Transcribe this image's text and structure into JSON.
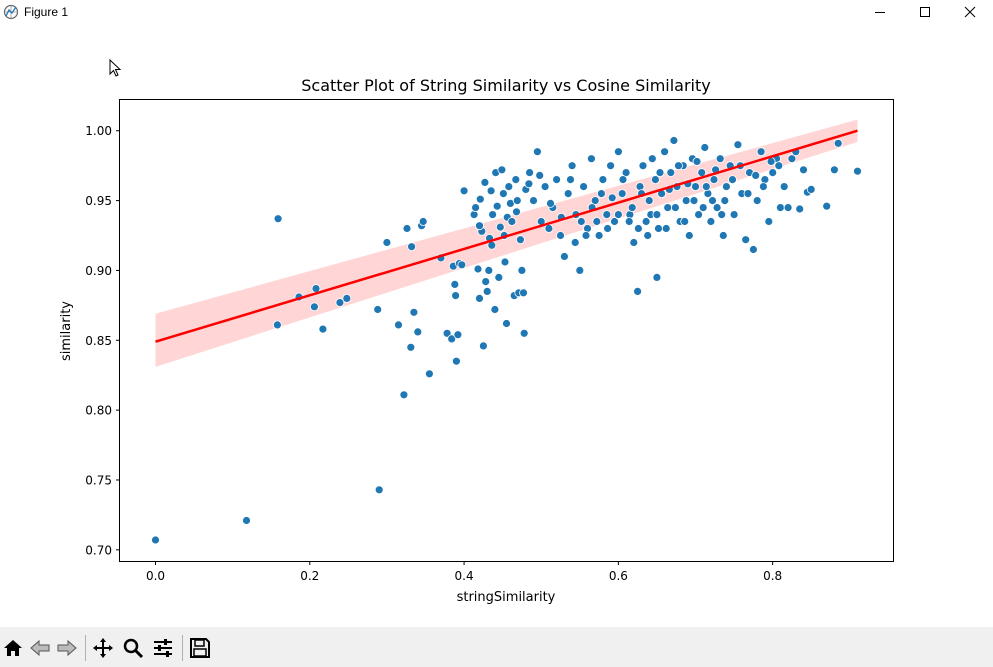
{
  "window": {
    "title": "Figure 1"
  },
  "toolbar": {
    "items": [
      "home-icon",
      "back-icon",
      "forward-icon",
      "pan-icon",
      "zoom-icon",
      "configure-subplots-icon",
      "save-icon"
    ]
  },
  "colors": {
    "point": "#1f77b4",
    "line": "#ff0000",
    "band": "#ffb3b3"
  },
  "chart_data": {
    "type": "scatter",
    "title": "Scatter Plot of String Similarity vs Cosine Similarity",
    "xlabel": "stringSimilarity",
    "ylabel": "similarity",
    "xlim": [
      -0.046,
      0.956
    ],
    "ylim": [
      0.692,
      1.022
    ],
    "xticks": [
      0.0,
      0.2,
      0.4,
      0.6,
      0.8
    ],
    "xtick_labels": [
      "0.0",
      "0.2",
      "0.4",
      "0.6",
      "0.8"
    ],
    "yticks": [
      0.7,
      0.75,
      0.8,
      0.85,
      0.9,
      0.95,
      1.0
    ],
    "ytick_labels": [
      "0.70",
      "0.75",
      "0.80",
      "0.85",
      "0.90",
      "0.95",
      "1.00"
    ],
    "regression": {
      "x": [
        0.0,
        0.91
      ],
      "y": [
        0.849,
        1.0
      ],
      "ci_at_x0": [
        0.831,
        0.869
      ],
      "ci_at_x1": [
        0.992,
        1.008
      ]
    },
    "points": [
      [
        0.0,
        0.707
      ],
      [
        0.118,
        0.721
      ],
      [
        0.29,
        0.743
      ],
      [
        0.159,
        0.937
      ],
      [
        0.158,
        0.861
      ],
      [
        0.186,
        0.881
      ],
      [
        0.206,
        0.874
      ],
      [
        0.208,
        0.887
      ],
      [
        0.217,
        0.858
      ],
      [
        0.239,
        0.877
      ],
      [
        0.248,
        0.88
      ],
      [
        0.288,
        0.872
      ],
      [
        0.3,
        0.92
      ],
      [
        0.315,
        0.861
      ],
      [
        0.322,
        0.811
      ],
      [
        0.326,
        0.93
      ],
      [
        0.331,
        0.845
      ],
      [
        0.332,
        0.917
      ],
      [
        0.335,
        0.87
      ],
      [
        0.34,
        0.856
      ],
      [
        0.345,
        0.932
      ],
      [
        0.347,
        0.935
      ],
      [
        0.355,
        0.826
      ],
      [
        0.37,
        0.909
      ],
      [
        0.378,
        0.855
      ],
      [
        0.384,
        0.851
      ],
      [
        0.386,
        0.903
      ],
      [
        0.388,
        0.89
      ],
      [
        0.389,
        0.882
      ],
      [
        0.39,
        0.835
      ],
      [
        0.392,
        0.854
      ],
      [
        0.394,
        0.905
      ],
      [
        0.397,
        0.904
      ],
      [
        0.4,
        0.957
      ],
      [
        0.413,
        0.94
      ],
      [
        0.415,
        0.945
      ],
      [
        0.418,
        0.901
      ],
      [
        0.42,
        0.88
      ],
      [
        0.421,
        0.951
      ],
      [
        0.423,
        0.928
      ],
      [
        0.425,
        0.846
      ],
      [
        0.427,
        0.963
      ],
      [
        0.428,
        0.892
      ],
      [
        0.43,
        0.885
      ],
      [
        0.432,
        0.9
      ],
      [
        0.433,
        0.923
      ],
      [
        0.435,
        0.957
      ],
      [
        0.437,
        0.94
      ],
      [
        0.44,
        0.872
      ],
      [
        0.441,
        0.97
      ],
      [
        0.443,
        0.946
      ],
      [
        0.445,
        0.895
      ],
      [
        0.447,
        0.931
      ],
      [
        0.449,
        0.972
      ],
      [
        0.451,
        0.955
      ],
      [
        0.453,
        0.906
      ],
      [
        0.455,
        0.862
      ],
      [
        0.456,
        0.938
      ],
      [
        0.458,
        0.96
      ],
      [
        0.46,
        0.948
      ],
      [
        0.462,
        0.935
      ],
      [
        0.465,
        0.882
      ],
      [
        0.467,
        0.965
      ],
      [
        0.469,
        0.95
      ],
      [
        0.471,
        0.884
      ],
      [
        0.473,
        0.922
      ],
      [
        0.475,
        0.9
      ],
      [
        0.477,
        0.884
      ],
      [
        0.478,
        0.855
      ],
      [
        0.48,
        0.958
      ],
      [
        0.485,
        0.97
      ],
      [
        0.49,
        0.95
      ],
      [
        0.495,
        0.985
      ],
      [
        0.5,
        0.935
      ],
      [
        0.505,
        0.96
      ],
      [
        0.51,
        0.93
      ],
      [
        0.515,
        0.945
      ],
      [
        0.52,
        0.965
      ],
      [
        0.525,
        0.925
      ],
      [
        0.53,
        0.91
      ],
      [
        0.535,
        0.955
      ],
      [
        0.54,
        0.975
      ],
      [
        0.545,
        0.94
      ],
      [
        0.55,
        0.9
      ],
      [
        0.555,
        0.96
      ],
      [
        0.56,
        0.93
      ],
      [
        0.565,
        0.98
      ],
      [
        0.57,
        0.95
      ],
      [
        0.575,
        0.925
      ],
      [
        0.58,
        0.965
      ],
      [
        0.585,
        0.94
      ],
      [
        0.59,
        0.975
      ],
      [
        0.595,
        0.935
      ],
      [
        0.6,
        0.985
      ],
      [
        0.605,
        0.955
      ],
      [
        0.61,
        0.97
      ],
      [
        0.615,
        0.94
      ],
      [
        0.62,
        0.92
      ],
      [
        0.625,
        0.885
      ],
      [
        0.628,
        0.96
      ],
      [
        0.632,
        0.975
      ],
      [
        0.636,
        0.935
      ],
      [
        0.64,
        0.95
      ],
      [
        0.644,
        0.98
      ],
      [
        0.648,
        0.965
      ],
      [
        0.65,
        0.895
      ],
      [
        0.652,
        0.93
      ],
      [
        0.656,
        0.955
      ],
      [
        0.66,
        0.985
      ],
      [
        0.664,
        0.945
      ],
      [
        0.668,
        0.97
      ],
      [
        0.672,
        0.993
      ],
      [
        0.676,
        0.96
      ],
      [
        0.68,
        0.935
      ],
      [
        0.684,
        0.975
      ],
      [
        0.688,
        0.95
      ],
      [
        0.692,
        0.925
      ],
      [
        0.696,
        0.98
      ],
      [
        0.7,
        0.96
      ],
      [
        0.704,
        0.94
      ],
      [
        0.708,
        0.97
      ],
      [
        0.712,
        0.988
      ],
      [
        0.716,
        0.955
      ],
      [
        0.72,
        0.935
      ],
      [
        0.724,
        0.965
      ],
      [
        0.728,
        0.945
      ],
      [
        0.732,
        0.98
      ],
      [
        0.736,
        0.925
      ],
      [
        0.74,
        0.96
      ],
      [
        0.745,
        0.975
      ],
      [
        0.75,
        0.94
      ],
      [
        0.755,
        0.99
      ],
      [
        0.76,
        0.955
      ],
      [
        0.765,
        0.922
      ],
      [
        0.77,
        0.97
      ],
      [
        0.775,
        0.915
      ],
      [
        0.78,
        0.95
      ],
      [
        0.785,
        0.985
      ],
      [
        0.79,
        0.965
      ],
      [
        0.795,
        0.935
      ],
      [
        0.8,
        0.97
      ],
      [
        0.805,
        0.98
      ],
      [
        0.81,
        0.945
      ],
      [
        0.815,
        0.96
      ],
      [
        0.82,
        0.945
      ],
      [
        0.825,
        0.98
      ],
      [
        0.83,
        0.985
      ],
      [
        0.835,
        0.944
      ],
      [
        0.84,
        0.972
      ],
      [
        0.845,
        0.956
      ],
      [
        0.85,
        0.958
      ],
      [
        0.87,
        0.946
      ],
      [
        0.88,
        0.972
      ],
      [
        0.885,
        0.991
      ],
      [
        0.91,
        0.971
      ],
      [
        0.42,
        0.932
      ],
      [
        0.436,
        0.918
      ],
      [
        0.452,
        0.925
      ],
      [
        0.468,
        0.942
      ],
      [
        0.484,
        0.962
      ],
      [
        0.498,
        0.968
      ],
      [
        0.512,
        0.948
      ],
      [
        0.526,
        0.938
      ],
      [
        0.538,
        0.965
      ],
      [
        0.552,
        0.935
      ],
      [
        0.566,
        0.945
      ],
      [
        0.578,
        0.955
      ],
      [
        0.592,
        0.952
      ],
      [
        0.606,
        0.965
      ],
      [
        0.618,
        0.945
      ],
      [
        0.63,
        0.955
      ],
      [
        0.642,
        0.94
      ],
      [
        0.654,
        0.97
      ],
      [
        0.666,
        0.958
      ],
      [
        0.678,
        0.975
      ],
      [
        0.69,
        0.962
      ],
      [
        0.702,
        0.978
      ],
      [
        0.714,
        0.96
      ],
      [
        0.726,
        0.972
      ],
      [
        0.738,
        0.95
      ],
      [
        0.748,
        0.965
      ],
      [
        0.758,
        0.975
      ],
      [
        0.768,
        0.955
      ],
      [
        0.778,
        0.968
      ],
      [
        0.788,
        0.96
      ],
      [
        0.798,
        0.978
      ],
      [
        0.808,
        0.975
      ],
      [
        0.544,
        0.92
      ],
      [
        0.558,
        0.925
      ],
      [
        0.572,
        0.935
      ],
      [
        0.586,
        0.93
      ],
      [
        0.6,
        0.94
      ],
      [
        0.614,
        0.935
      ],
      [
        0.626,
        0.93
      ],
      [
        0.638,
        0.925
      ],
      [
        0.65,
        0.94
      ],
      [
        0.662,
        0.93
      ],
      [
        0.674,
        0.945
      ],
      [
        0.686,
        0.935
      ],
      [
        0.698,
        0.95
      ],
      [
        0.71,
        0.945
      ],
      [
        0.722,
        0.95
      ],
      [
        0.734,
        0.94
      ]
    ]
  }
}
